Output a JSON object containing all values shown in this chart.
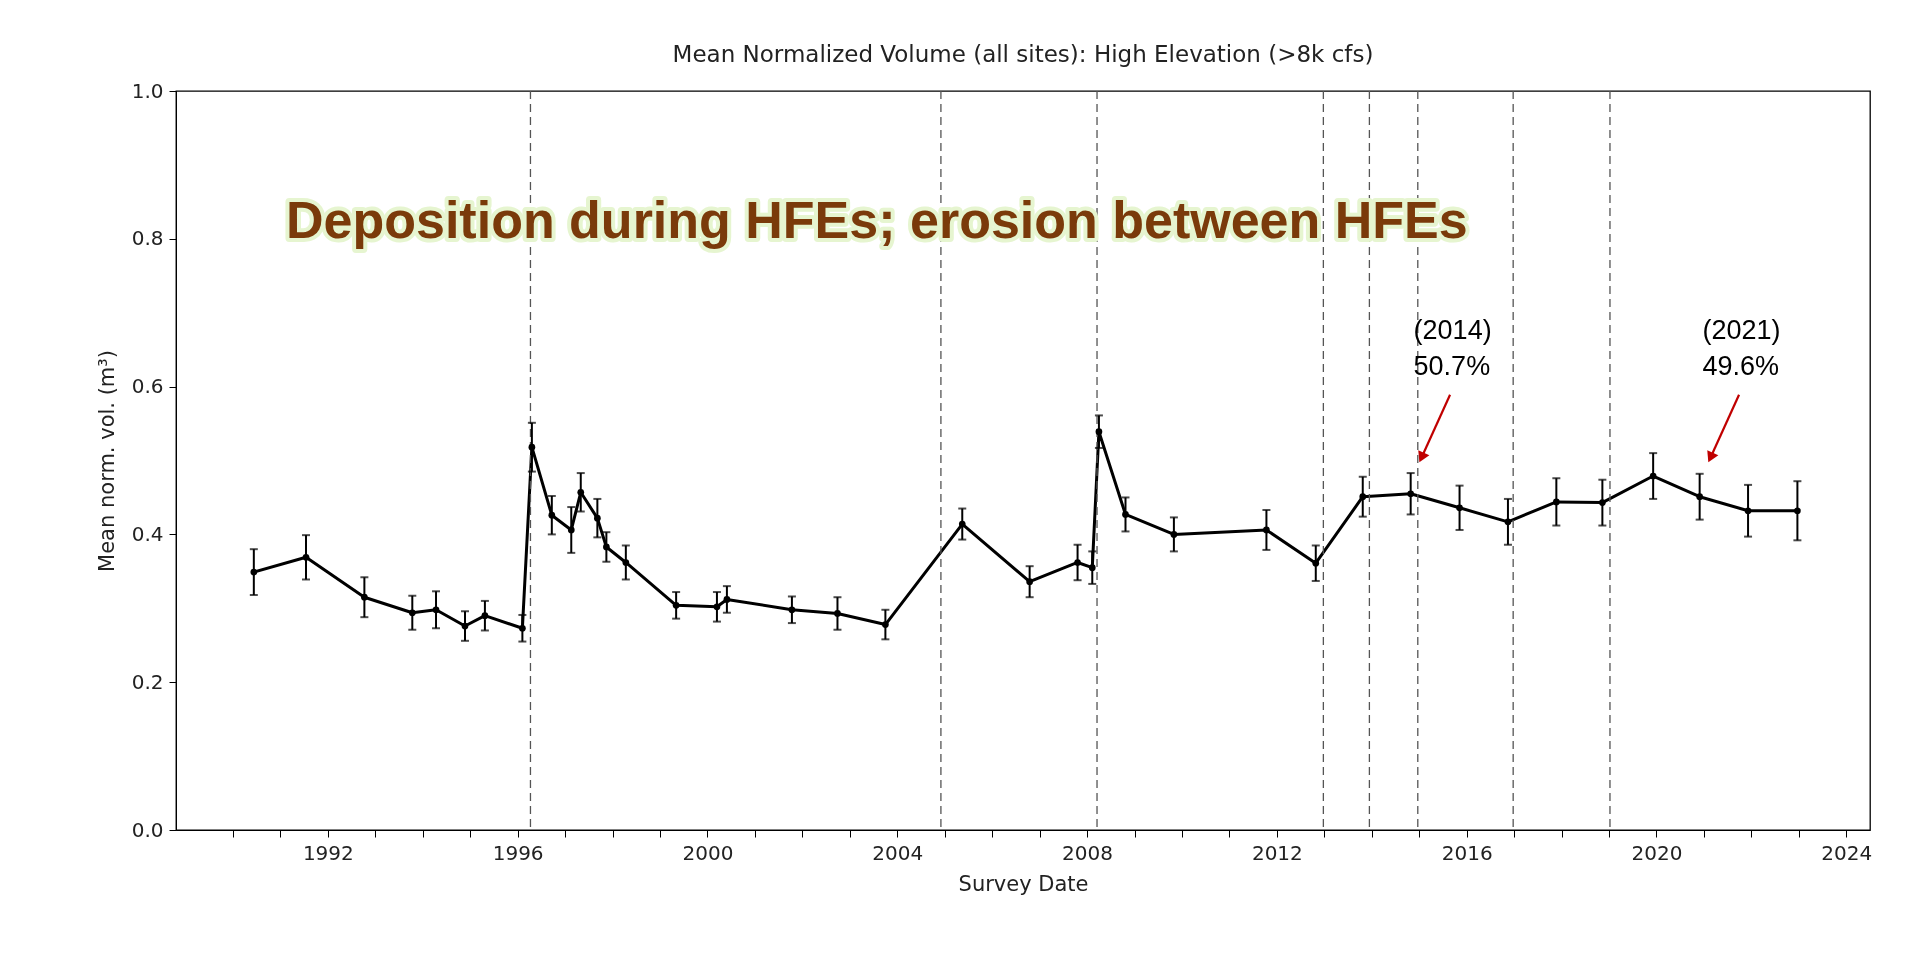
{
  "chart_data": {
    "type": "line",
    "title": "Mean Normalized Volume (all sites): High Elevation (>8k cfs)",
    "xlabel": "Survey Date",
    "ylabel": "Mean norm. vol. (m³)",
    "x": [
      1990.44,
      1991.54,
      1992.77,
      1993.78,
      1994.28,
      1994.89,
      1995.31,
      1996.1,
      1996.3,
      1996.72,
      1997.13,
      1997.33,
      1997.68,
      1997.87,
      1998.28,
      1999.34,
      2000.2,
      2000.41,
      2001.78,
      2002.74,
      2003.75,
      2005.37,
      2006.79,
      2007.8,
      2008.11,
      2008.25,
      2008.81,
      2009.83,
      2011.78,
      2012.82,
      2013.81,
      2014.82,
      2015.85,
      2016.87,
      2017.89,
      2018.86,
      2019.93,
      2020.91,
      2021.93,
      2022.97
    ],
    "series": [
      {
        "color": "#000000",
        "values": [
          0.349,
          0.369,
          0.315,
          0.294,
          0.298,
          0.276,
          0.29,
          0.273,
          0.518,
          0.426,
          0.406,
          0.457,
          0.422,
          0.383,
          0.362,
          0.304,
          0.302,
          0.312,
          0.298,
          0.293,
          0.278,
          0.414,
          0.336,
          0.362,
          0.355,
          0.539,
          0.427,
          0.4,
          0.406,
          0.361,
          0.451,
          0.455,
          0.436,
          0.417,
          0.444,
          0.443,
          0.479,
          0.451,
          0.432,
          0.432
        ],
        "errors": [
          0.031,
          0.03,
          0.027,
          0.023,
          0.025,
          0.02,
          0.02,
          0.018,
          0.033,
          0.026,
          0.031,
          0.026,
          0.026,
          0.02,
          0.023,
          0.018,
          0.02,
          0.018,
          0.018,
          0.022,
          0.02,
          0.021,
          0.021,
          0.024,
          0.022,
          0.022,
          0.023,
          0.023,
          0.027,
          0.024,
          0.027,
          0.028,
          0.03,
          0.031,
          0.032,
          0.031,
          0.031,
          0.031,
          0.035,
          0.04
        ]
      }
    ],
    "xlim": [
      1988.8,
      2024.5
    ],
    "ylim": [
      0,
      1
    ],
    "xticks": [
      {
        "value": 1990,
        "label": null
      },
      {
        "value": 1991,
        "label": null
      },
      1992,
      {
        "value": 1993,
        "label": null
      },
      {
        "value": 1994,
        "label": null
      },
      {
        "value": 1995,
        "label": null
      },
      1996,
      {
        "value": 1997,
        "label": null
      },
      {
        "value": 1998,
        "label": null
      },
      {
        "value": 1999,
        "label": null
      },
      2000,
      {
        "value": 2001,
        "label": null
      },
      {
        "value": 2002,
        "label": null
      },
      {
        "value": 2003,
        "label": null
      },
      2004,
      {
        "value": 2005,
        "label": null
      },
      {
        "value": 2006,
        "label": null
      },
      {
        "value": 2007,
        "label": null
      },
      2008,
      {
        "value": 2009,
        "label": null
      },
      {
        "value": 2010,
        "label": null
      },
      {
        "value": 2011,
        "label": null
      },
      2012,
      {
        "value": 2013,
        "label": null
      },
      {
        "value": 2014,
        "label": null
      },
      {
        "value": 2015,
        "label": null
      },
      2016,
      {
        "value": 2017,
        "label": null
      },
      {
        "value": 2018,
        "label": null
      },
      {
        "value": 2019,
        "label": null
      },
      2020,
      {
        "value": 2021,
        "label": null
      },
      {
        "value": 2022,
        "label": null
      },
      {
        "value": 2023,
        "label": null
      },
      2024
    ],
    "yticks": [
      {
        "value": 0,
        "label": "0.0"
      },
      {
        "value": 0.2,
        "label": "0.2"
      },
      {
        "value": 0.4,
        "label": "0.4"
      },
      {
        "value": 0.6,
        "label": "0.6"
      },
      {
        "value": 0.8,
        "label": "0.8"
      },
      {
        "value": 1,
        "label": "1.0"
      }
    ],
    "ref_lines": [
      {
        "axis": "x",
        "value": 1996.27,
        "color": "#555555",
        "line_style": "dashed"
      },
      {
        "axis": "x",
        "value": 2004.92,
        "color": "#555555",
        "line_style": "dashed"
      },
      {
        "axis": "x",
        "value": 2008.21,
        "color": "#555555",
        "line_style": "dashed"
      },
      {
        "axis": "x",
        "value": 2012.98,
        "color": "#555555",
        "line_style": "dashed"
      },
      {
        "axis": "x",
        "value": 2013.95,
        "color": "#555555",
        "line_style": "dashed"
      },
      {
        "axis": "x",
        "value": 2014.97,
        "color": "#555555",
        "line_style": "dashed"
      },
      {
        "axis": "x",
        "value": 2016.98,
        "color": "#555555",
        "line_style": "dashed"
      },
      {
        "axis": "x",
        "value": 2019.02,
        "color": "#555555",
        "line_style": "dashed"
      }
    ],
    "annotations": [
      "Deposition during HFEs; erosion between HFEs",
      {
        "text": "(2014)\n50.7%",
        "x": 2015.05,
        "y": 0.504
      },
      {
        "text": "(2021)\n49.6%",
        "x": 2021.14,
        "y": 0.504
      }
    ],
    "marker": "circle",
    "line_style": "solid",
    "grid": false
  }
}
